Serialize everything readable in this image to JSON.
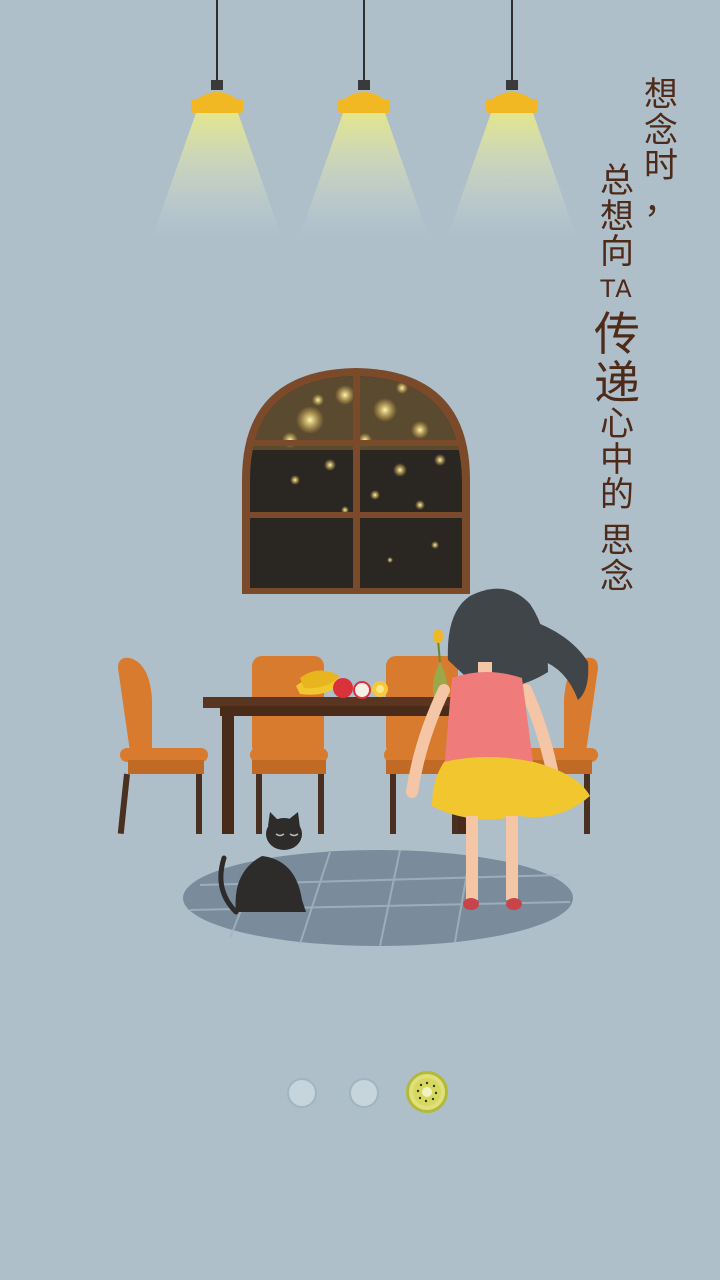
{
  "caption": {
    "col1": [
      "想",
      "念",
      "时",
      "，"
    ],
    "col2": {
      "a": "总",
      "b": "想",
      "c": "向",
      "ta": "TA",
      "d": "传",
      "e": "递",
      "f": "心",
      "g": "中",
      "h": "的",
      "i": "思",
      "j": "念"
    }
  },
  "pager": {
    "total": 3,
    "active_index": 3,
    "active_icon": "kiwi-slice-icon"
  },
  "colors": {
    "background": "#aebfca",
    "text": "#4e2a18",
    "chair": "#d87b2e",
    "table": "#5a3521",
    "lamp": "#f2b824"
  }
}
